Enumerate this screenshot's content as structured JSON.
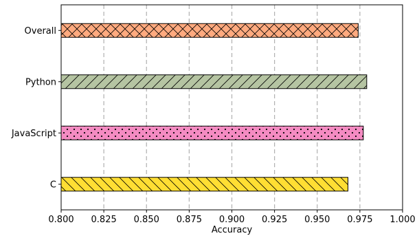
{
  "chart_data": {
    "type": "bar",
    "orientation": "horizontal",
    "categories": [
      "Overall",
      "Python",
      "JavaScript",
      "C"
    ],
    "values": [
      0.974,
      0.979,
      0.977,
      0.968
    ],
    "colors": [
      "#FFAA7F",
      "#B5C4A2",
      "#F48BC2",
      "#FFDE33"
    ],
    "hatches": [
      "crosshatch",
      "diagonal-forward",
      "dots",
      "diagonal-back"
    ],
    "xlabel": "Accuracy",
    "ylabel": "",
    "title": "",
    "xlim": [
      0.8,
      1.0
    ],
    "xticks": [
      "0.800",
      "0.825",
      "0.850",
      "0.875",
      "0.900",
      "0.925",
      "0.950",
      "0.975",
      "1.000"
    ],
    "grid": "vertical-dashed",
    "legend": "none"
  }
}
